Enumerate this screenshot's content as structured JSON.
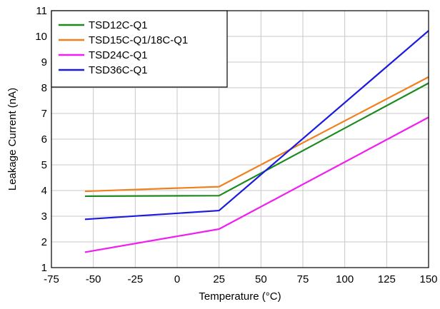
{
  "chart_data": {
    "type": "line",
    "title": "",
    "xlabel": "Temperature (°C)",
    "ylabel": "Leakage Current (nA)",
    "xlim": [
      -75,
      150
    ],
    "ylim": [
      1,
      11
    ],
    "xticks": [
      -75,
      -50,
      -25,
      0,
      25,
      50,
      75,
      100,
      125,
      150
    ],
    "yticks": [
      1,
      2,
      3,
      4,
      5,
      6,
      7,
      8,
      9,
      10,
      11
    ],
    "x": [
      -55,
      25,
      150
    ],
    "grid": true,
    "legend_position": "top-left",
    "series": [
      {
        "name": "TSD12C-Q1",
        "color": "#1e8a1e",
        "values": [
          3.78,
          3.8,
          8.18
        ]
      },
      {
        "name": "TSD15C-Q1/18C-Q1",
        "color": "#f07f1e",
        "values": [
          3.97,
          4.15,
          8.42
        ]
      },
      {
        "name": "TSD24C-Q1",
        "color": "#f01ef0",
        "values": [
          1.6,
          2.5,
          6.85
        ]
      },
      {
        "name": "TSD36C-Q1",
        "color": "#1a1ae0",
        "values": [
          2.88,
          3.22,
          10.22
        ]
      }
    ]
  }
}
